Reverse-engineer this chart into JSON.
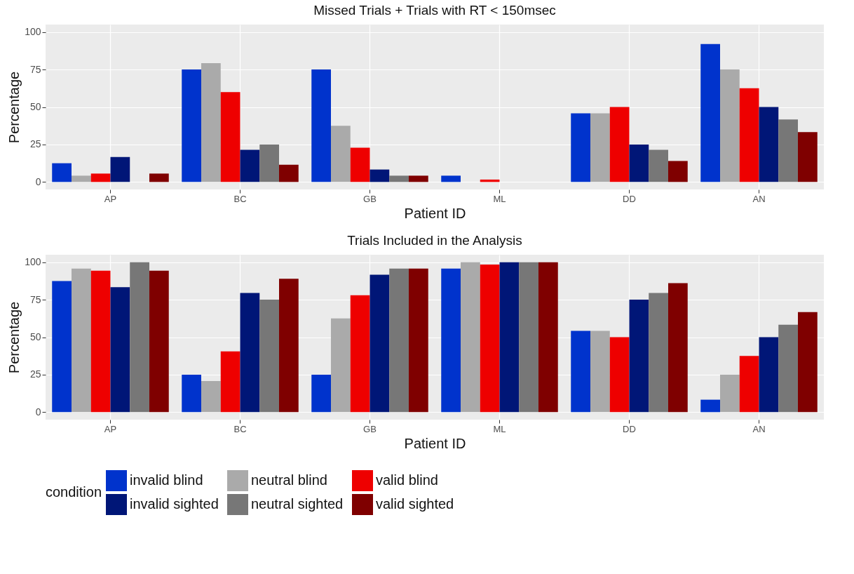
{
  "chart_data": [
    {
      "type": "bar",
      "title": "Missed Trials + Trials with RT < 150msec",
      "xlabel": "Patient ID",
      "ylabel": "Percentage",
      "categories": [
        "AP",
        "BC",
        "GB",
        "ML",
        "DD",
        "AN"
      ],
      "ylim": [
        -5,
        105
      ],
      "yticks": [
        0,
        25,
        50,
        75,
        100
      ],
      "grid": true,
      "series": [
        {
          "color": "#0033cc",
          "values": [
            12.5,
            75,
            75,
            4.2,
            45.8,
            92
          ]
        },
        {
          "color": "#aaaaaa",
          "values": [
            4.2,
            79.2,
            37.5,
            0,
            45.8,
            75
          ]
        },
        {
          "color": "#ee0000",
          "values": [
            5.6,
            60,
            22.9,
            1.6,
            50,
            62.5
          ]
        },
        {
          "color": "#001677",
          "values": [
            16.7,
            21.4,
            8.3,
            0,
            25,
            50
          ]
        },
        {
          "color": "#777777",
          "values": [
            0,
            25,
            4.2,
            0,
            21.4,
            41.7
          ]
        },
        {
          "color": "#7f0000",
          "values": [
            5.6,
            11.5,
            4.2,
            0,
            14,
            33.3
          ]
        }
      ]
    },
    {
      "type": "bar",
      "title": "Trials Included in the Analysis",
      "xlabel": "Patient ID",
      "ylabel": "Percentage",
      "categories": [
        "AP",
        "BC",
        "GB",
        "ML",
        "DD",
        "AN"
      ],
      "ylim": [
        -5,
        105
      ],
      "yticks": [
        0,
        25,
        50,
        75,
        100
      ],
      "grid": true,
      "legend": "bottom",
      "legend_title": "condition",
      "series": [
        {
          "name": "invalid blind",
          "color": "#0033cc",
          "values": [
            87.5,
            25,
            25,
            95.8,
            54.2,
            8.3
          ]
        },
        {
          "name": "neutral blind",
          "color": "#aaaaaa",
          "values": [
            95.8,
            20.8,
            62.5,
            100,
            54.2,
            25
          ]
        },
        {
          "name": "valid blind",
          "color": "#ee0000",
          "values": [
            94.4,
            40.5,
            78,
            98.4,
            50,
            37.5
          ]
        },
        {
          "name": "invalid sighted",
          "color": "#001677",
          "values": [
            83.3,
            79.5,
            91.7,
            100,
            75,
            50
          ]
        },
        {
          "name": "neutral sighted",
          "color": "#777777",
          "values": [
            100,
            75,
            95.8,
            100,
            79.5,
            58.3
          ]
        },
        {
          "name": "valid sighted",
          "color": "#7f0000",
          "values": [
            94.4,
            89,
            95.8,
            100,
            86,
            66.7
          ]
        }
      ]
    }
  ]
}
